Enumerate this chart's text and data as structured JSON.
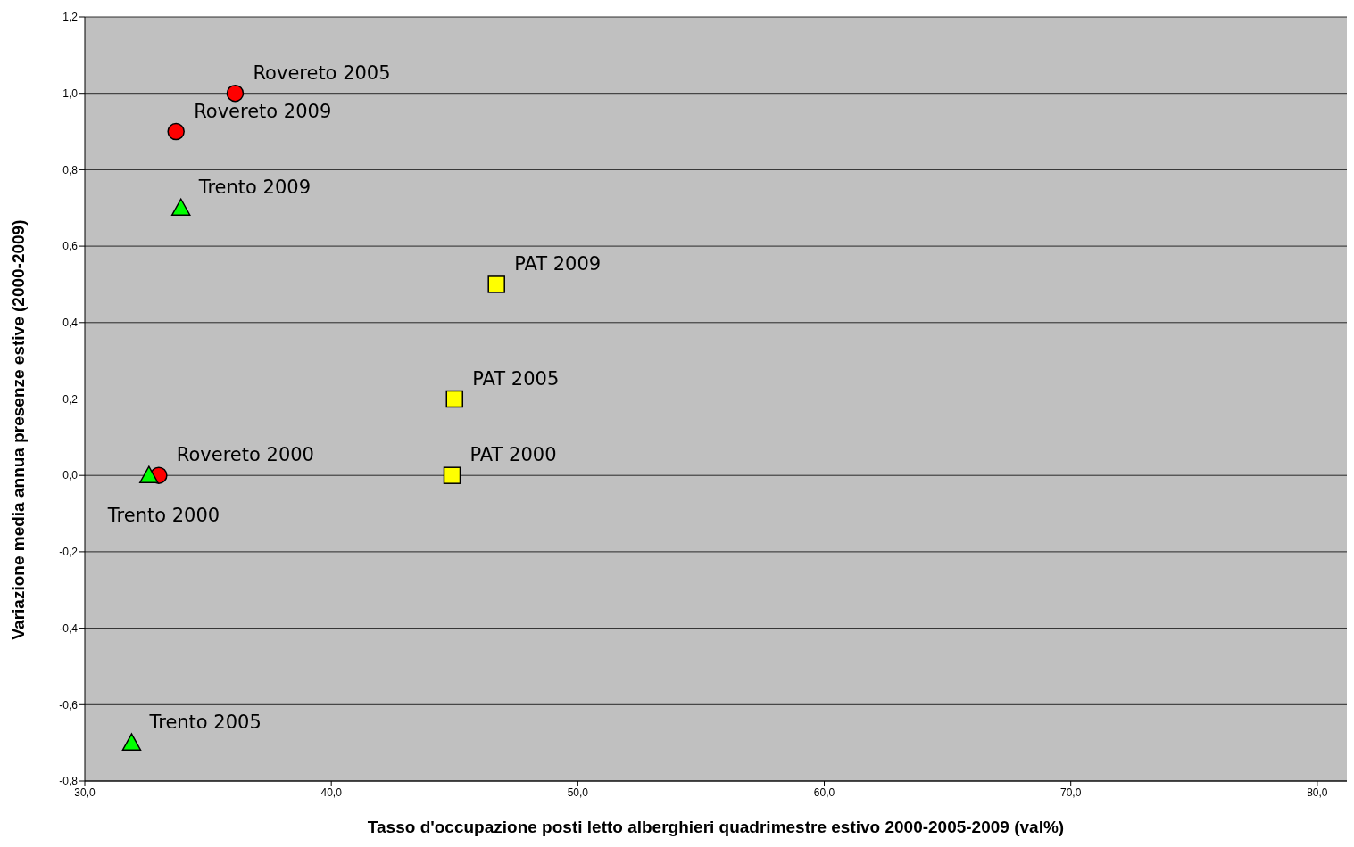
{
  "chart_data": {
    "type": "scatter",
    "xlabel": "Tasso d'occupazione posti letto alberghieri quadrimestre estivo 2000-2005-2009 (val%)",
    "ylabel": "Variazione media annua presenze estive (2000-2009)",
    "xlim": [
      30,
      81.2
    ],
    "xticks": [
      {
        "value": 30,
        "label": "30,0"
      },
      {
        "value": 40,
        "label": "40,0"
      },
      {
        "value": 50,
        "label": "50,0"
      },
      {
        "value": 60,
        "label": "60,0"
      },
      {
        "value": 70,
        "label": "70,0"
      },
      {
        "value": 80,
        "label": "80,0"
      }
    ],
    "ylim": [
      -0.8,
      1.2
    ],
    "yticks": [
      {
        "value": -0.8,
        "label": "-0,8"
      },
      {
        "value": -0.6,
        "label": "-0,6"
      },
      {
        "value": -0.4,
        "label": "-0,4"
      },
      {
        "value": -0.2,
        "label": "-0,2"
      },
      {
        "value": 0,
        "label": "0,0"
      },
      {
        "value": 0.2,
        "label": "0,2"
      },
      {
        "value": 0.4,
        "label": "0,4"
      },
      {
        "value": 0.6,
        "label": "0,6"
      },
      {
        "value": 0.8,
        "label": "0,8"
      },
      {
        "value": 1.0,
        "label": "1,0"
      },
      {
        "value": 1.2,
        "label": "1,2"
      }
    ],
    "grid": "y",
    "legend": false,
    "series": [
      {
        "color": "#ff0000",
        "marker": "circle",
        "x": [
          33.0,
          36.1,
          33.7
        ],
        "values": [
          0,
          1.0,
          0.9
        ]
      },
      {
        "color": "#00ff00",
        "marker": "triangle",
        "x": [
          32.6,
          31.9,
          33.9
        ],
        "values": [
          0,
          -0.7,
          0.7
        ]
      },
      {
        "color": "#ffff00",
        "marker": "square",
        "x": [
          44.9,
          45.0,
          46.7
        ],
        "values": [
          0,
          0.2,
          0.5
        ]
      }
    ],
    "annotations": [
      {
        "text": "Rovereto 2000",
        "x": 33.0,
        "y": 0
      },
      {
        "text": "Rovereto 2005",
        "x": 36.1,
        "y": 1.0
      },
      {
        "text": "Rovereto 2009",
        "x": 33.7,
        "y": 0.9
      },
      {
        "text": "Trento 2000",
        "x": 32.6,
        "y": 0
      },
      {
        "text": "Trento 2005",
        "x": 31.9,
        "y": -0.7
      },
      {
        "text": "Trento 2009",
        "x": 33.9,
        "y": 0.7
      },
      {
        "text": "PAT 2000",
        "x": 44.9,
        "y": 0
      },
      {
        "text": "PAT 2005",
        "x": 45.0,
        "y": 0.2
      },
      {
        "text": "PAT 2009",
        "x": 46.7,
        "y": 0.5
      }
    ]
  }
}
